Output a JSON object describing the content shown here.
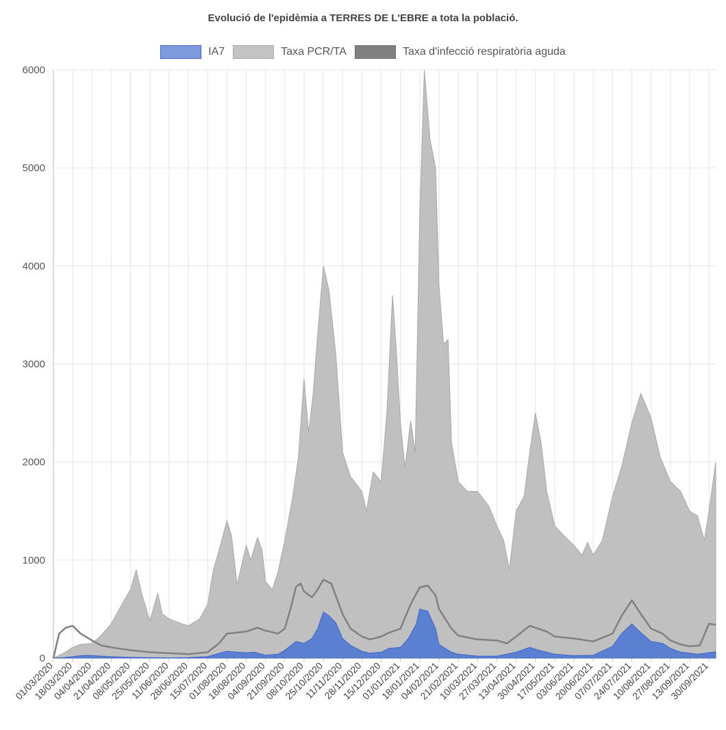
{
  "chart_data": {
    "type": "area",
    "title": "Evolució de l'epidèmia a TERRES DE L'EBRE a tota la població.",
    "xlabel": "",
    "ylabel": "",
    "ylim": [
      0,
      6000
    ],
    "yticks": [
      0,
      1000,
      2000,
      3000,
      4000,
      5000,
      6000
    ],
    "grid": true,
    "legend_position": "top",
    "x_start": "01/03/2020",
    "x_end": "06/10/2021",
    "x_tick_labels": [
      "01/03/2020",
      "18/03/2020",
      "04/04/2020",
      "21/04/2020",
      "08/05/2020",
      "25/05/2020",
      "11/06/2020",
      "28/06/2020",
      "15/07/2020",
      "01/08/2020",
      "18/08/2020",
      "04/09/2020",
      "21/09/2020",
      "08/10/2020",
      "25/10/2020",
      "11/11/2020",
      "28/11/2020",
      "15/12/2020",
      "01/01/2021",
      "18/01/2021",
      "04/02/2021",
      "21/02/2021",
      "10/03/2021",
      "27/03/2021",
      "13/04/2021",
      "30/04/2021",
      "17/05/2021",
      "03/06/2021",
      "20/06/2021",
      "07/07/2021",
      "24/07/2021",
      "10/08/2021",
      "27/08/2021",
      "13/09/2021",
      "30/09/2021"
    ],
    "series": [
      {
        "name": "IA7",
        "color": "#5b7fd1",
        "border": "#3d64c8",
        "points": [
          [
            "01/03/2020",
            0
          ],
          [
            "10/03/2020",
            5
          ],
          [
            "18/03/2020",
            15
          ],
          [
            "25/03/2020",
            25
          ],
          [
            "01/04/2020",
            28
          ],
          [
            "10/04/2020",
            22
          ],
          [
            "21/04/2020",
            15
          ],
          [
            "08/05/2020",
            8
          ],
          [
            "25/05/2020",
            5
          ],
          [
            "11/06/2020",
            3
          ],
          [
            "28/06/2020",
            5
          ],
          [
            "15/07/2020",
            15
          ],
          [
            "25/07/2020",
            50
          ],
          [
            "01/08/2020",
            70
          ],
          [
            "10/08/2020",
            60
          ],
          [
            "18/08/2020",
            55
          ],
          [
            "25/08/2020",
            60
          ],
          [
            "01/09/2020",
            40
          ],
          [
            "04/09/2020",
            30
          ],
          [
            "15/09/2020",
            40
          ],
          [
            "21/09/2020",
            80
          ],
          [
            "01/10/2020",
            170
          ],
          [
            "08/10/2020",
            150
          ],
          [
            "15/10/2020",
            200
          ],
          [
            "20/10/2020",
            300
          ],
          [
            "25/10/2020",
            470
          ],
          [
            "30/10/2020",
            430
          ],
          [
            "05/11/2020",
            360
          ],
          [
            "11/11/2020",
            200
          ],
          [
            "18/11/2020",
            130
          ],
          [
            "28/11/2020",
            70
          ],
          [
            "05/12/2020",
            50
          ],
          [
            "15/12/2020",
            60
          ],
          [
            "22/12/2020",
            100
          ],
          [
            "01/01/2021",
            110
          ],
          [
            "08/01/2021",
            200
          ],
          [
            "15/01/2021",
            350
          ],
          [
            "18/01/2021",
            500
          ],
          [
            "25/01/2021",
            480
          ],
          [
            "01/02/2021",
            300
          ],
          [
            "04/02/2021",
            140
          ],
          [
            "15/02/2021",
            60
          ],
          [
            "21/02/2021",
            40
          ],
          [
            "10/03/2021",
            20
          ],
          [
            "27/03/2021",
            20
          ],
          [
            "13/04/2021",
            60
          ],
          [
            "25/04/2021",
            110
          ],
          [
            "30/04/2021",
            90
          ],
          [
            "17/05/2021",
            40
          ],
          [
            "03/06/2021",
            25
          ],
          [
            "20/06/2021",
            30
          ],
          [
            "07/07/2021",
            120
          ],
          [
            "15/07/2021",
            250
          ],
          [
            "24/07/2021",
            350
          ],
          [
            "01/08/2021",
            260
          ],
          [
            "10/08/2021",
            170
          ],
          [
            "20/08/2021",
            150
          ],
          [
            "27/08/2021",
            100
          ],
          [
            "05/09/2021",
            60
          ],
          [
            "13/09/2021",
            50
          ],
          [
            "20/09/2021",
            40
          ],
          [
            "30/09/2021",
            55
          ],
          [
            "06/10/2021",
            65
          ]
        ]
      },
      {
        "name": "Taxa PCR/TA",
        "color": "#c0c0c0",
        "border": "#a8a8a8",
        "points": [
          [
            "01/03/2020",
            0
          ],
          [
            "10/03/2020",
            50
          ],
          [
            "18/03/2020",
            110
          ],
          [
            "25/03/2020",
            140
          ],
          [
            "04/04/2020",
            150
          ],
          [
            "12/04/2020",
            230
          ],
          [
            "21/04/2020",
            350
          ],
          [
            "01/05/2020",
            560
          ],
          [
            "08/05/2020",
            700
          ],
          [
            "13/05/2020",
            900
          ],
          [
            "18/05/2020",
            650
          ],
          [
            "25/05/2020",
            380
          ],
          [
            "01/06/2020",
            660
          ],
          [
            "05/06/2020",
            450
          ],
          [
            "11/06/2020",
            400
          ],
          [
            "20/06/2020",
            360
          ],
          [
            "28/06/2020",
            330
          ],
          [
            "08/07/2020",
            400
          ],
          [
            "15/07/2020",
            550
          ],
          [
            "20/07/2020",
            900
          ],
          [
            "25/07/2020",
            1100
          ],
          [
            "01/08/2020",
            1400
          ],
          [
            "05/08/2020",
            1250
          ],
          [
            "10/08/2020",
            750
          ],
          [
            "18/08/2020",
            1150
          ],
          [
            "22/08/2020",
            1000
          ],
          [
            "28/08/2020",
            1230
          ],
          [
            "01/09/2020",
            1100
          ],
          [
            "04/09/2020",
            780
          ],
          [
            "10/09/2020",
            700
          ],
          [
            "15/09/2020",
            880
          ],
          [
            "21/09/2020",
            1200
          ],
          [
            "28/09/2020",
            1650
          ],
          [
            "03/10/2020",
            2050
          ],
          [
            "08/10/2020",
            2850
          ],
          [
            "12/10/2020",
            2300
          ],
          [
            "16/10/2020",
            2700
          ],
          [
            "20/10/2020",
            3300
          ],
          [
            "25/10/2020",
            4000
          ],
          [
            "30/10/2020",
            3750
          ],
          [
            "05/11/2020",
            3100
          ],
          [
            "11/11/2020",
            2100
          ],
          [
            "18/11/2020",
            1850
          ],
          [
            "28/11/2020",
            1700
          ],
          [
            "02/12/2020",
            1500
          ],
          [
            "08/12/2020",
            1900
          ],
          [
            "15/12/2020",
            1800
          ],
          [
            "20/12/2020",
            2500
          ],
          [
            "25/12/2020",
            3700
          ],
          [
            "28/12/2020",
            3200
          ],
          [
            "01/01/2021",
            2400
          ],
          [
            "05/01/2021",
            1950
          ],
          [
            "10/01/2021",
            2420
          ],
          [
            "14/01/2021",
            2100
          ],
          [
            "18/01/2021",
            4500
          ],
          [
            "22/01/2021",
            6000
          ],
          [
            "27/01/2021",
            5300
          ],
          [
            "01/02/2021",
            5000
          ],
          [
            "04/02/2021",
            3800
          ],
          [
            "08/02/2021",
            3200
          ],
          [
            "12/02/2021",
            3250
          ],
          [
            "15/02/2021",
            2200
          ],
          [
            "21/02/2021",
            1800
          ],
          [
            "01/03/2021",
            1700
          ],
          [
            "10/03/2021",
            1700
          ],
          [
            "20/03/2021",
            1550
          ],
          [
            "27/03/2021",
            1350
          ],
          [
            "02/04/2021",
            1200
          ],
          [
            "07/04/2021",
            900
          ],
          [
            "13/04/2021",
            1500
          ],
          [
            "20/04/2021",
            1650
          ],
          [
            "25/04/2021",
            2100
          ],
          [
            "30/04/2021",
            2500
          ],
          [
            "05/05/2021",
            2200
          ],
          [
            "10/05/2021",
            1700
          ],
          [
            "17/05/2021",
            1350
          ],
          [
            "25/05/2021",
            1250
          ],
          [
            "03/06/2021",
            1150
          ],
          [
            "10/06/2021",
            1050
          ],
          [
            "15/06/2021",
            1180
          ],
          [
            "20/06/2021",
            1050
          ],
          [
            "28/06/2021",
            1200
          ],
          [
            "07/07/2021",
            1650
          ],
          [
            "15/07/2021",
            1950
          ],
          [
            "24/07/2021",
            2400
          ],
          [
            "01/08/2021",
            2700
          ],
          [
            "10/08/2021",
            2450
          ],
          [
            "18/08/2021",
            2050
          ],
          [
            "27/08/2021",
            1800
          ],
          [
            "05/09/2021",
            1700
          ],
          [
            "13/09/2021",
            1500
          ],
          [
            "20/09/2021",
            1450
          ],
          [
            "26/09/2021",
            1200
          ],
          [
            "30/09/2021",
            1500
          ],
          [
            "06/10/2021",
            2000
          ]
        ]
      },
      {
        "name": "Taxa d'infecció respiratòria aguda",
        "color": "#808080",
        "border": "#808080",
        "points": [
          [
            "01/03/2020",
            0
          ],
          [
            "06/03/2020",
            250
          ],
          [
            "12/03/2020",
            310
          ],
          [
            "18/03/2020",
            330
          ],
          [
            "25/03/2020",
            250
          ],
          [
            "04/04/2020",
            180
          ],
          [
            "12/04/2020",
            130
          ],
          [
            "21/04/2020",
            110
          ],
          [
            "08/05/2020",
            80
          ],
          [
            "25/05/2020",
            60
          ],
          [
            "11/06/2020",
            50
          ],
          [
            "28/06/2020",
            40
          ],
          [
            "15/07/2020",
            60
          ],
          [
            "25/07/2020",
            150
          ],
          [
            "01/08/2020",
            250
          ],
          [
            "10/08/2020",
            260
          ],
          [
            "18/08/2020",
            270
          ],
          [
            "28/08/2020",
            310
          ],
          [
            "04/09/2020",
            280
          ],
          [
            "15/09/2020",
            250
          ],
          [
            "21/09/2020",
            300
          ],
          [
            "26/09/2020",
            500
          ],
          [
            "01/10/2020",
            730
          ],
          [
            "05/10/2020",
            760
          ],
          [
            "08/10/2020",
            680
          ],
          [
            "15/10/2020",
            620
          ],
          [
            "20/10/2020",
            700
          ],
          [
            "25/10/2020",
            800
          ],
          [
            "01/11/2020",
            760
          ],
          [
            "11/11/2020",
            450
          ],
          [
            "18/11/2020",
            300
          ],
          [
            "28/11/2020",
            220
          ],
          [
            "05/12/2020",
            190
          ],
          [
            "15/12/2020",
            220
          ],
          [
            "22/12/2020",
            260
          ],
          [
            "01/01/2021",
            300
          ],
          [
            "10/01/2021",
            550
          ],
          [
            "18/01/2021",
            720
          ],
          [
            "25/01/2021",
            740
          ],
          [
            "01/02/2021",
            640
          ],
          [
            "04/02/2021",
            500
          ],
          [
            "15/02/2021",
            300
          ],
          [
            "21/02/2021",
            230
          ],
          [
            "10/03/2021",
            190
          ],
          [
            "27/03/2021",
            180
          ],
          [
            "05/04/2021",
            150
          ],
          [
            "13/04/2021",
            220
          ],
          [
            "25/04/2021",
            330
          ],
          [
            "30/04/2021",
            310
          ],
          [
            "10/05/2021",
            270
          ],
          [
            "17/05/2021",
            220
          ],
          [
            "03/06/2021",
            200
          ],
          [
            "20/06/2021",
            170
          ],
          [
            "07/07/2021",
            250
          ],
          [
            "15/07/2021",
            430
          ],
          [
            "24/07/2021",
            590
          ],
          [
            "01/08/2021",
            450
          ],
          [
            "10/08/2021",
            300
          ],
          [
            "20/08/2021",
            250
          ],
          [
            "27/08/2021",
            180
          ],
          [
            "05/09/2021",
            140
          ],
          [
            "13/09/2021",
            120
          ],
          [
            "22/09/2021",
            130
          ],
          [
            "30/09/2021",
            350
          ],
          [
            "06/10/2021",
            340
          ]
        ]
      }
    ]
  }
}
